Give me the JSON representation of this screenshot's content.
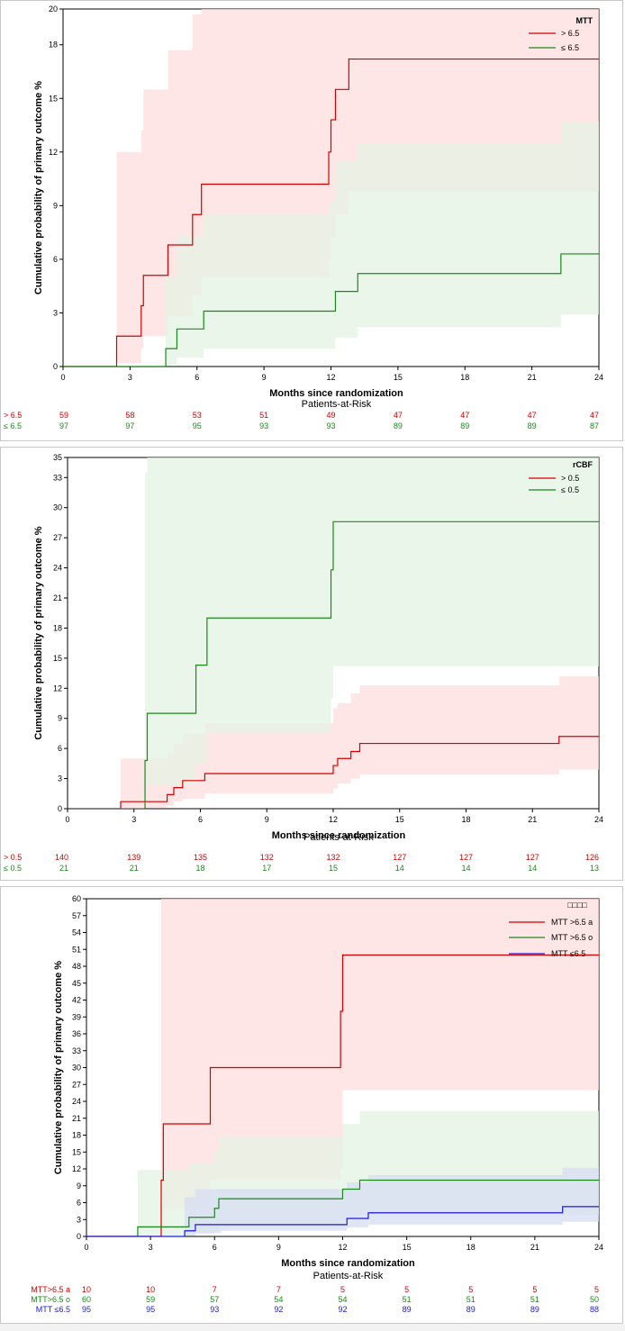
{
  "chart_data": [
    {
      "type": "line",
      "step": true,
      "title": "",
      "xlabel": "Months since randomization",
      "ylabel": "Cumulative probability of primary outcome %",
      "xlim": [
        0,
        24
      ],
      "ylim": [
        0,
        20
      ],
      "xticks": [
        0,
        3,
        6,
        9,
        12,
        15,
        18,
        21,
        24
      ],
      "yticks": [
        0,
        3,
        6,
        9,
        12,
        15,
        18,
        20
      ],
      "legend": {
        "title": "MTT",
        "position": "top-right"
      },
      "series": [
        {
          "name": "> 6.5",
          "color": "#d40000",
          "band": "#ffdcdc",
          "steps": [
            [
              0,
              0
            ],
            [
              2.4,
              1.7
            ],
            [
              3.5,
              3.4
            ],
            [
              3.6,
              5.1
            ],
            [
              4.7,
              6.8
            ],
            [
              5.8,
              8.5
            ],
            [
              6.2,
              10.2
            ],
            [
              11.9,
              12.0
            ],
            [
              12.0,
              13.8
            ],
            [
              12.2,
              15.5
            ],
            [
              12.8,
              17.2
            ],
            [
              24,
              17.2
            ]
          ],
          "upper": [
            [
              0,
              0
            ],
            [
              2.4,
              12.0
            ],
            [
              3.5,
              13.2
            ],
            [
              3.6,
              15.5
            ],
            [
              4.7,
              17.7
            ],
            [
              5.8,
              19.7
            ],
            [
              6.2,
              20.5
            ],
            [
              24,
              20.5
            ]
          ],
          "lower": [
            [
              0,
              0
            ],
            [
              2.4,
              0.2
            ],
            [
              3.5,
              1.0
            ],
            [
              3.6,
              1.7
            ],
            [
              4.7,
              2.8
            ],
            [
              5.8,
              4.0
            ],
            [
              6.2,
              5.0
            ],
            [
              11.9,
              6.0
            ],
            [
              12.0,
              7.2
            ],
            [
              12.2,
              8.5
            ],
            [
              12.8,
              9.8
            ],
            [
              24,
              9.8
            ]
          ]
        },
        {
          "name": "≤ 6.5",
          "color": "#1a8a1a",
          "band": "#e3f2e3",
          "steps": [
            [
              0,
              0
            ],
            [
              4.6,
              1.0
            ],
            [
              5.1,
              2.1
            ],
            [
              6.3,
              3.1
            ],
            [
              12.2,
              4.2
            ],
            [
              13.2,
              5.2
            ],
            [
              22.3,
              6.3
            ],
            [
              24,
              6.3
            ]
          ],
          "upper": [
            [
              0,
              0
            ],
            [
              4.6,
              5.0
            ],
            [
              5.1,
              7.3
            ],
            [
              6.3,
              8.5
            ],
            [
              11.9,
              9.3
            ],
            [
              12.2,
              11.5
            ],
            [
              13.2,
              12.5
            ],
            [
              22.3,
              13.7
            ],
            [
              24,
              13.7
            ]
          ],
          "lower": [
            [
              0,
              0
            ],
            [
              4.6,
              0.1
            ],
            [
              5.1,
              0.5
            ],
            [
              6.3,
              1.0
            ],
            [
              12.2,
              1.6
            ],
            [
              13.2,
              2.2
            ],
            [
              22.3,
              2.9
            ],
            [
              24,
              2.9
            ]
          ]
        }
      ],
      "risk_table": {
        "title": "Patients-at-Risk",
        "times": [
          0,
          3,
          6,
          9,
          12,
          15,
          18,
          21,
          24
        ],
        "rows": [
          {
            "label": "> 6.5",
            "color": "#d40000",
            "values": [
              "59",
              "58",
              "53",
              "51",
              "49",
              "47",
              "47",
              "47",
              "47"
            ]
          },
          {
            "label": "≤ 6.5",
            "color": "#1a8a1a",
            "values": [
              "97",
              "97",
              "95",
              "93",
              "93",
              "89",
              "89",
              "89",
              "87"
            ]
          }
        ]
      }
    },
    {
      "type": "line",
      "step": true,
      "title": "",
      "xlabel": "Months since randomization",
      "ylabel": "Cumulative probability of primary outcome %",
      "xlim": [
        0,
        24
      ],
      "ylim": [
        0,
        35
      ],
      "xticks": [
        0,
        3,
        6,
        9,
        12,
        15,
        18,
        21,
        24
      ],
      "yticks": [
        0,
        3,
        6,
        9,
        12,
        15,
        18,
        21,
        24,
        27,
        30,
        33,
        35
      ],
      "legend": {
        "title": "rCBF",
        "position": "top-right"
      },
      "series": [
        {
          "name": "> 0.5",
          "color": "#d40000",
          "band": "#ffdcdc",
          "steps": [
            [
              0,
              0
            ],
            [
              2.4,
              0.7
            ],
            [
              4.5,
              1.4
            ],
            [
              4.8,
              2.1
            ],
            [
              5.2,
              2.8
            ],
            [
              6.2,
              3.5
            ],
            [
              12.0,
              4.3
            ],
            [
              12.2,
              5.0
            ],
            [
              12.8,
              5.7
            ],
            [
              13.2,
              6.5
            ],
            [
              22.2,
              7.2
            ],
            [
              24,
              7.2
            ]
          ],
          "upper": [
            [
              0,
              0
            ],
            [
              2.4,
              5.0
            ],
            [
              4.5,
              5.5
            ],
            [
              4.8,
              6.5
            ],
            [
              5.2,
              7.5
            ],
            [
              6.2,
              8.5
            ],
            [
              12.0,
              10.0
            ],
            [
              12.2,
              10.5
            ],
            [
              12.8,
              11.5
            ],
            [
              13.2,
              12.3
            ],
            [
              22.2,
              13.2
            ],
            [
              24,
              13.2
            ]
          ],
          "lower": [
            [
              0,
              0
            ],
            [
              2.4,
              0.1
            ],
            [
              4.5,
              0.3
            ],
            [
              4.8,
              0.7
            ],
            [
              5.2,
              1.0
            ],
            [
              6.2,
              1.5
            ],
            [
              12.0,
              2.0
            ],
            [
              12.2,
              2.5
            ],
            [
              12.8,
              3.0
            ],
            [
              13.2,
              3.4
            ],
            [
              22.2,
              3.9
            ],
            [
              24,
              3.9
            ]
          ]
        },
        {
          "name": "≤ 0.5",
          "color": "#1a8a1a",
          "band": "#e3f2e3",
          "steps": [
            [
              0,
              0
            ],
            [
              3.5,
              4.8
            ],
            [
              3.6,
              9.5
            ],
            [
              5.8,
              14.3
            ],
            [
              6.3,
              19.0
            ],
            [
              11.9,
              23.8
            ],
            [
              12.0,
              28.6
            ],
            [
              24,
              28.6
            ]
          ],
          "upper": [
            [
              0,
              0
            ],
            [
              3.5,
              33.5
            ],
            [
              3.6,
              36
            ],
            [
              24,
              36
            ]
          ],
          "lower": [
            [
              0,
              0
            ],
            [
              3.5,
              0.5
            ],
            [
              3.6,
              2.4
            ],
            [
              5.8,
              4.5
            ],
            [
              6.3,
              7.5
            ],
            [
              11.9,
              11.0
            ],
            [
              12.0,
              14.2
            ],
            [
              24,
              14.2
            ]
          ]
        }
      ],
      "risk_table": {
        "title": "Patients-at-Risk",
        "times": [
          0,
          3,
          6,
          9,
          12,
          15,
          18,
          21,
          24
        ],
        "rows": [
          {
            "label": "> 0.5",
            "color": "#d40000",
            "values": [
              "140",
              "139",
              "135",
              "132",
              "132",
              "127",
              "127",
              "127",
              "126"
            ]
          },
          {
            "label": "≤ 0.5",
            "color": "#1a8a1a",
            "values": [
              "21",
              "21",
              "18",
              "17",
              "15",
              "14",
              "14",
              "14",
              "13"
            ]
          }
        ]
      }
    },
    {
      "type": "line",
      "step": true,
      "title": "",
      "xlabel": "Months since randomization",
      "ylabel": "Cumulative probability of primary outcome %",
      "xlim": [
        0,
        24
      ],
      "ylim": [
        0,
        60
      ],
      "xticks": [
        0,
        3,
        6,
        9,
        12,
        15,
        18,
        21,
        24
      ],
      "yticks": [
        0,
        3,
        6,
        9,
        12,
        15,
        18,
        21,
        24,
        27,
        30,
        33,
        36,
        39,
        42,
        45,
        48,
        51,
        54,
        57,
        60
      ],
      "legend": {
        "title": "□□□□",
        "position": "top-right"
      },
      "series": [
        {
          "name": "MTT >6.5 a",
          "color": "#d40000",
          "band": "#ffdcdc",
          "steps": [
            [
              0,
              0
            ],
            [
              3.5,
              10
            ],
            [
              3.6,
              20
            ],
            [
              5.8,
              30
            ],
            [
              11.9,
              40
            ],
            [
              12.0,
              50
            ],
            [
              24,
              50
            ]
          ],
          "upper": [
            [
              0,
              0
            ],
            [
              3.5,
              62
            ],
            [
              24,
              62
            ]
          ],
          "lower": [
            [
              0,
              0
            ],
            [
              3.5,
              1
            ],
            [
              3.6,
              5
            ],
            [
              5.8,
              10
            ],
            [
              11.9,
              12
            ],
            [
              12.0,
              26
            ],
            [
              24,
              26
            ]
          ]
        },
        {
          "name": "MTT >6.5 o",
          "color": "#1a8a1a",
          "band": "#e3f2e3",
          "steps": [
            [
              0,
              0
            ],
            [
              2.4,
              1.7
            ],
            [
              4.8,
              3.4
            ],
            [
              6.0,
              5.0
            ],
            [
              6.2,
              6.7
            ],
            [
              12.0,
              8.4
            ],
            [
              12.8,
              10.0
            ],
            [
              24,
              10.0
            ]
          ],
          "upper": [
            [
              0,
              0
            ],
            [
              2.4,
              11.8
            ],
            [
              3.6,
              11.8
            ],
            [
              4.8,
              13.0
            ],
            [
              6.0,
              15.3
            ],
            [
              6.2,
              17.7
            ],
            [
              11.9,
              17.7
            ],
            [
              12.0,
              20.0
            ],
            [
              12.8,
              22.3
            ],
            [
              24,
              22.3
            ]
          ],
          "lower": [
            [
              0,
              0
            ],
            [
              2.4,
              0.1
            ],
            [
              4.8,
              0.4
            ],
            [
              6.0,
              1.0
            ],
            [
              6.2,
              1.8
            ],
            [
              12.0,
              2.8
            ],
            [
              12.8,
              3.8
            ],
            [
              24,
              3.8
            ]
          ]
        },
        {
          "name": "MTT ≤6.5",
          "color": "#1a1adb",
          "band": "#d6dcf4",
          "steps": [
            [
              0,
              0
            ],
            [
              4.6,
              1.0
            ],
            [
              5.1,
              2.1
            ],
            [
              6.3,
              2.1
            ],
            [
              12.2,
              3.2
            ],
            [
              13.2,
              4.2
            ],
            [
              22.3,
              5.3
            ],
            [
              24,
              5.3
            ]
          ],
          "upper": [
            [
              0,
              0
            ],
            [
              4.6,
              7.0
            ],
            [
              5.1,
              8.4
            ],
            [
              11.9,
              8.4
            ],
            [
              12.2,
              9.6
            ],
            [
              13.2,
              10.9
            ],
            [
              22.3,
              12.2
            ],
            [
              24,
              12.2
            ]
          ],
          "lower": [
            [
              0,
              0
            ],
            [
              4.6,
              0.1
            ],
            [
              5.1,
              0.6
            ],
            [
              6.3,
              1.0
            ],
            [
              12.2,
              1.6
            ],
            [
              13.2,
              2.1
            ],
            [
              22.3,
              2.6
            ],
            [
              24,
              2.6
            ]
          ]
        }
      ],
      "risk_table": {
        "title": "Patients-at-Risk",
        "times": [
          0,
          3,
          6,
          9,
          12,
          15,
          18,
          21,
          24
        ],
        "rows": [
          {
            "label": "MTT>6.5 a",
            "color": "#d40000",
            "values": [
              "10",
              "10",
              "7",
              "7",
              "5",
              "5",
              "5",
              "5",
              "5"
            ]
          },
          {
            "label": "MTT>6.5 o",
            "color": "#1a8a1a",
            "values": [
              "60",
              "59",
              "57",
              "54",
              "54",
              "51",
              "51",
              "51",
              "50"
            ]
          },
          {
            "label": "MTT ≤6.5",
            "color": "#1a1adb",
            "values": [
              "95",
              "95",
              "93",
              "92",
              "92",
              "89",
              "89",
              "89",
              "88"
            ]
          }
        ]
      }
    }
  ]
}
